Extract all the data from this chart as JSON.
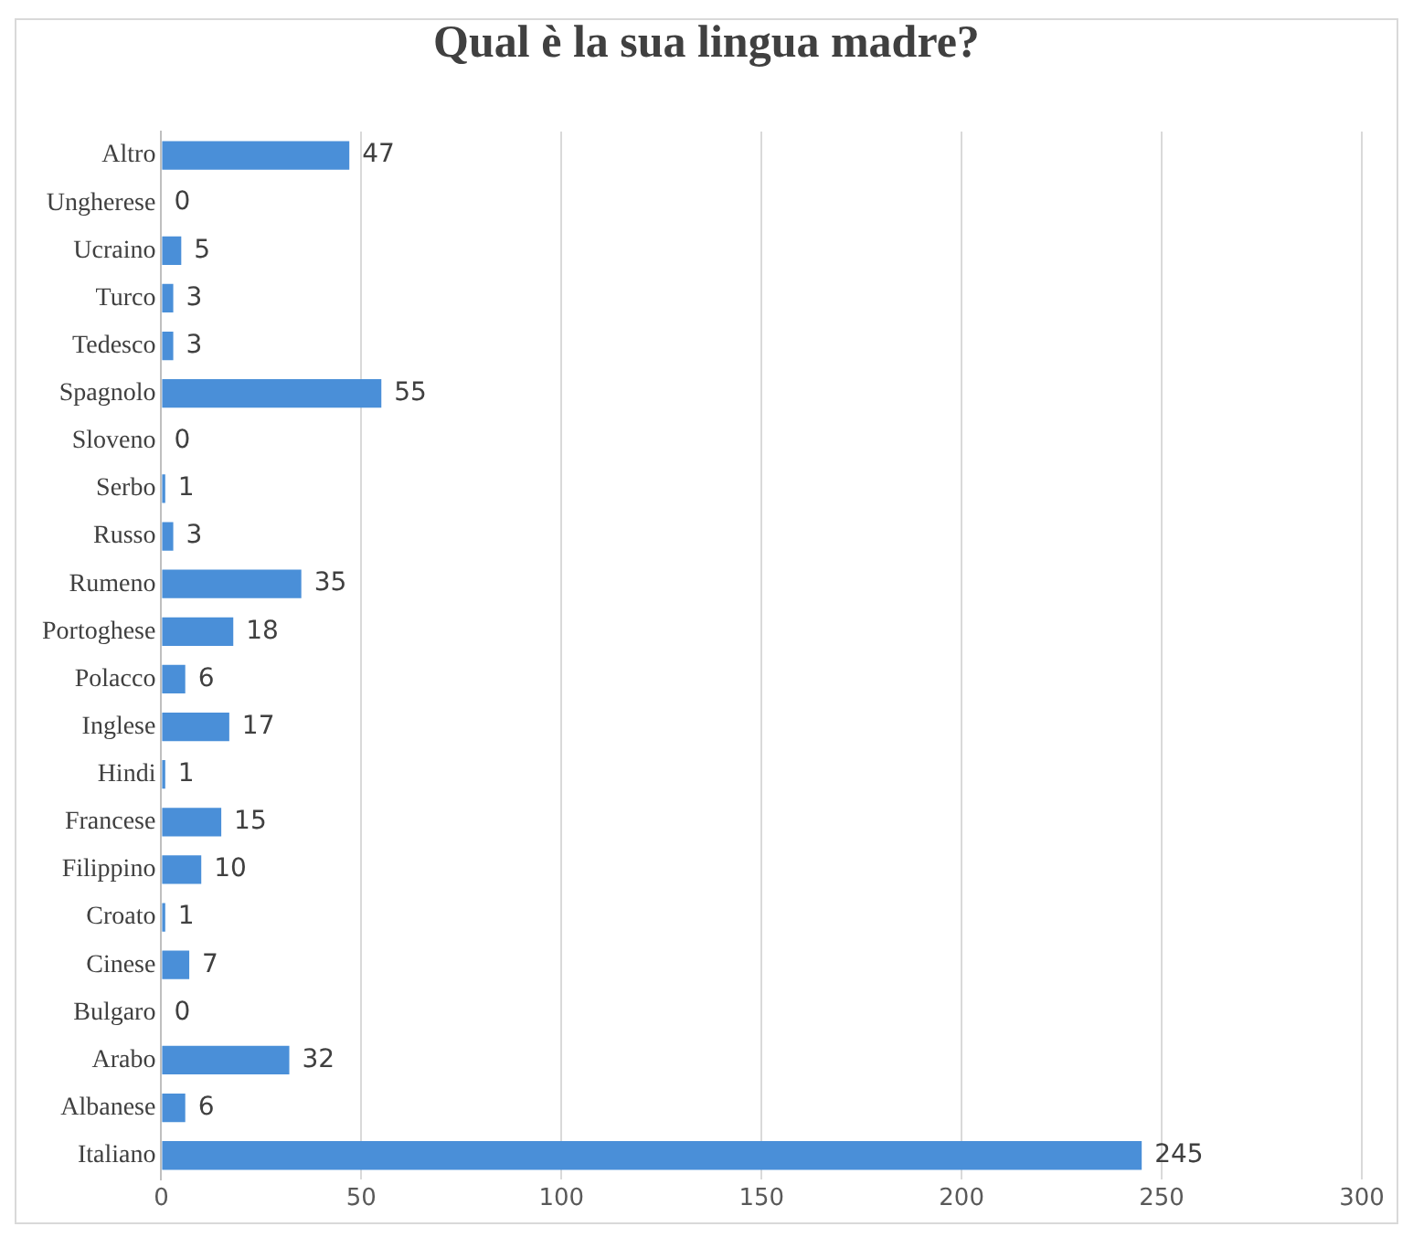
{
  "chart_data": {
    "type": "bar",
    "title": "Qual è la sua lingua madre?",
    "orientation": "horizontal",
    "categories": [
      "Altro",
      "Ungherese",
      "Ucraino",
      "Turco",
      "Tedesco",
      "Spagnolo",
      "Sloveno",
      "Serbo",
      "Russo",
      "Rumeno",
      "Portoghese",
      "Polacco",
      "Inglese",
      "Hindi",
      "Francese",
      "Filippino",
      "Croato",
      "Cinese",
      "Bulgaro",
      "Arabo",
      "Albanese",
      "Italiano"
    ],
    "values": [
      47,
      0,
      5,
      3,
      3,
      55,
      0,
      1,
      3,
      35,
      18,
      6,
      17,
      1,
      15,
      10,
      1,
      7,
      0,
      32,
      6,
      245
    ],
    "color": "#4a8fd8",
    "xlim": [
      0,
      300
    ],
    "xticks": [
      0,
      50,
      100,
      150,
      200,
      250,
      300
    ],
    "grid": "x",
    "data_labels": true
  }
}
